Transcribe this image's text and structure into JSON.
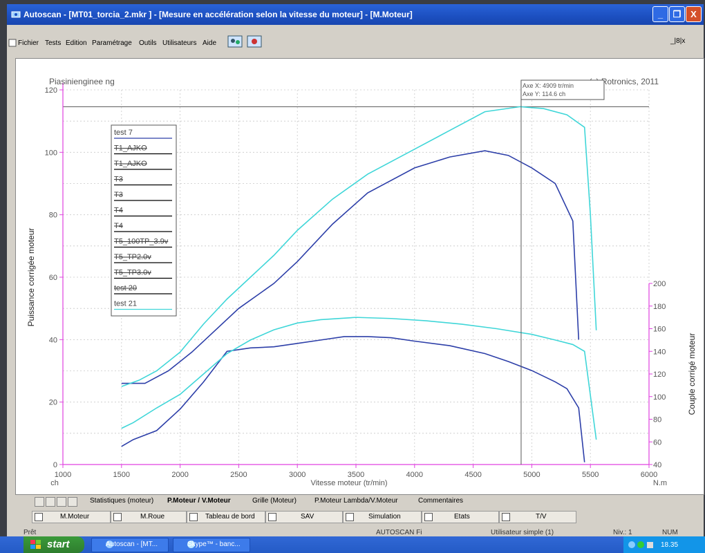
{
  "window": {
    "title": "Autoscan - [MT01_torcia_2.mkr ] - [Mesure en accélération selon la vitesse du moteur] - [M.Moteur]",
    "controls": {
      "minimize": "_",
      "restore": "❐",
      "close": "X"
    },
    "mdi_controls": "_|8|x"
  },
  "menu": [
    "Fichier",
    "Tests",
    "Edition",
    "Paramétrage",
    "Outils",
    "Utilisateurs",
    "Aide"
  ],
  "chart_header": {
    "left": "Piasinienginee ng",
    "right": "(c) Rotronics, 2011"
  },
  "cursor": {
    "x_text": "Axe X: 4909 tr/min",
    "y_text": "Axe Y: 114.6 ch"
  },
  "axes": {
    "left_label": "Puissance corrigée moteur",
    "right_label": "Couple corrigé moteur",
    "x_label": "Vitesse moteur (tr/min)",
    "left_unit": "ch",
    "right_unit": "N.m",
    "y_ticks": [
      "0",
      "20",
      "40",
      "60",
      "80",
      "100",
      "120"
    ],
    "right_ticks": [
      "40",
      "60",
      "80",
      "100",
      "120",
      "140",
      "160",
      "180",
      "200"
    ],
    "x_ticks": [
      "1000",
      "1500",
      "2000",
      "2500",
      "3000",
      "3500",
      "4000",
      "4500",
      "5000",
      "5500",
      "6000"
    ]
  },
  "legend": [
    {
      "name": "test 7",
      "strike": false,
      "color": "#2c3ea8"
    },
    {
      "name": "T1_AJKO",
      "strike": true,
      "color": "#000"
    },
    {
      "name": "T1_AJKO",
      "strike": true,
      "color": "#000"
    },
    {
      "name": "T3",
      "strike": true,
      "color": "#000"
    },
    {
      "name": "T3",
      "strike": true,
      "color": "#000"
    },
    {
      "name": "T4",
      "strike": true,
      "color": "#000"
    },
    {
      "name": "T4",
      "strike": true,
      "color": "#000"
    },
    {
      "name": "T5_100TP_3.9v",
      "strike": true,
      "color": "#000"
    },
    {
      "name": "T5_TP2.0v",
      "strike": true,
      "color": "#000"
    },
    {
      "name": "T5_TP3.0v",
      "strike": true,
      "color": "#000"
    },
    {
      "name": "test 20",
      "strike": true,
      "color": "#000"
    },
    {
      "name": "test 21",
      "strike": false,
      "color": "#3fd6d8"
    }
  ],
  "chart_data": {
    "type": "line",
    "x_range": [
      1000,
      6000
    ],
    "y_range": [
      0,
      120
    ],
    "y2_range": [
      40,
      200
    ],
    "series": [
      {
        "name": "test 7",
        "kind": "power",
        "color": "#2c3ea8",
        "x": [
          1500,
          1700,
          1900,
          2100,
          2300,
          2500,
          2800,
          3000,
          3300,
          3600,
          4000,
          4300,
          4600,
          4800,
          5000,
          5200,
          5350,
          5400
        ],
        "y": [
          26,
          26,
          30,
          36,
          43,
          50,
          58,
          65,
          77,
          87,
          95,
          98.5,
          100.5,
          99,
          95,
          90,
          78,
          40
        ]
      },
      {
        "name": "test 21",
        "kind": "power",
        "color": "#3fd6d8",
        "x": [
          1500,
          1650,
          1800,
          2000,
          2200,
          2400,
          2600,
          2800,
          3000,
          3300,
          3600,
          4000,
          4300,
          4600,
          4900,
          5100,
          5300,
          5450,
          5500,
          5550
        ],
        "y": [
          25,
          27,
          30,
          36,
          45,
          53,
          60,
          67,
          75,
          85,
          93,
          101,
          107,
          113,
          114.6,
          114,
          112,
          108,
          80,
          43
        ]
      },
      {
        "name": "test 7",
        "kind": "torque",
        "color": "#2c3ea8",
        "x": [
          1500,
          1600,
          1800,
          2000,
          2200,
          2400,
          2600,
          2800,
          3000,
          3200,
          3400,
          3600,
          3800,
          4000,
          4300,
          4600,
          4800,
          5000,
          5200,
          5300,
          5400,
          5450
        ],
        "y": [
          56,
          62,
          70,
          89,
          113,
          140,
          143,
          144,
          147,
          150,
          153,
          153,
          152,
          149,
          145,
          138,
          131,
          123,
          113,
          107,
          90,
          42
        ]
      },
      {
        "name": "test 21",
        "kind": "torque",
        "color": "#3fd6d8",
        "x": [
          1500,
          1600,
          1800,
          2000,
          2200,
          2400,
          2600,
          2800,
          3000,
          3200,
          3500,
          3800,
          4100,
          4400,
          4700,
          5000,
          5200,
          5350,
          5450,
          5550
        ],
        "y": [
          72,
          77,
          90,
          102,
          120,
          138,
          150,
          159,
          165,
          168,
          170,
          169,
          167,
          164,
          160,
          155,
          150,
          146,
          140,
          62
        ]
      }
    ],
    "grid": true,
    "cursor_x": 4909
  },
  "tabs": [
    "Statistiques (moteur)",
    "P.Moteur / V.Moteur",
    "Grille (Moteur)",
    "P.Moteur Lambda/V.Moteur",
    "Commentaires"
  ],
  "bottom_buttons": [
    "M.Moteur",
    "M.Roue",
    "Tableau de bord",
    "SAV",
    "Simulation",
    "Etats",
    "T/V"
  ],
  "status": {
    "ready": "Prêt",
    "app": "AUTOSCAN Fi",
    "user": "Utilisateur simple (1)",
    "level": "Niv.: 1",
    "num": "NUM"
  },
  "taskbar": {
    "start": "start",
    "tasks": [
      "Autoscan - [MT...",
      "Skype™ - banc..."
    ],
    "clock": "18.35"
  }
}
